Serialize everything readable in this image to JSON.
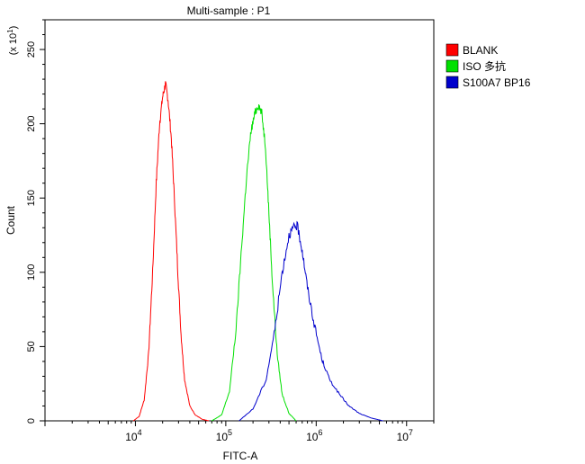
{
  "chart_data": {
    "type": "line",
    "title": "Multi-sample : P1",
    "xlabel": "FITC-A",
    "ylabel": "Count",
    "y_multiplier_label": "(x 10",
    "y_multiplier_exp": "1",
    "x_scale": "log",
    "xlim": [
      1000,
      20000000
    ],
    "ylim": [
      0,
      270
    ],
    "x_ticks": [
      {
        "value": 10000,
        "base": "10",
        "exp": "4"
      },
      {
        "value": 100000,
        "base": "10",
        "exp": "5"
      },
      {
        "value": 1000000,
        "base": "10",
        "exp": "6"
      },
      {
        "value": 10000000,
        "base": "10",
        "exp": "7"
      }
    ],
    "y_ticks": [
      0,
      50,
      100,
      150,
      200,
      250
    ],
    "legend_position": "right",
    "series": [
      {
        "name": "BLANK",
        "color": "#ff0000",
        "points": [
          [
            9500,
            0
          ],
          [
            11000,
            3
          ],
          [
            12500,
            14
          ],
          [
            14000,
            45
          ],
          [
            15500,
            100
          ],
          [
            17000,
            160
          ],
          [
            18500,
            200
          ],
          [
            20000,
            218
          ],
          [
            21500,
            227
          ],
          [
            23000,
            216
          ],
          [
            25000,
            190
          ],
          [
            27000,
            150
          ],
          [
            29500,
            100
          ],
          [
            32000,
            58
          ],
          [
            35000,
            28
          ],
          [
            40000,
            10
          ],
          [
            46000,
            4
          ],
          [
            55000,
            1
          ],
          [
            65000,
            0
          ]
        ]
      },
      {
        "name": "ISO 多抗",
        "color": "#00e000",
        "points": [
          [
            70000,
            0
          ],
          [
            90000,
            4
          ],
          [
            110000,
            20
          ],
          [
            130000,
            62
          ],
          [
            150000,
            118
          ],
          [
            170000,
            165
          ],
          [
            190000,
            195
          ],
          [
            210000,
            207
          ],
          [
            230000,
            213
          ],
          [
            250000,
            207
          ],
          [
            275000,
            185
          ],
          [
            300000,
            140
          ],
          [
            330000,
            90
          ],
          [
            370000,
            45
          ],
          [
            420000,
            18
          ],
          [
            500000,
            5
          ],
          [
            600000,
            0
          ]
        ]
      },
      {
        "name": "S100A7 BP16",
        "color": "#0000cc",
        "points": [
          [
            140000,
            0
          ],
          [
            200000,
            8
          ],
          [
            280000,
            28
          ],
          [
            350000,
            62
          ],
          [
            420000,
            100
          ],
          [
            500000,
            125
          ],
          [
            560000,
            130
          ],
          [
            620000,
            131
          ],
          [
            700000,
            115
          ],
          [
            800000,
            90
          ],
          [
            950000,
            65
          ],
          [
            1150000,
            42
          ],
          [
            1400000,
            28
          ],
          [
            1800000,
            18
          ],
          [
            2300000,
            10
          ],
          [
            3000000,
            5
          ],
          [
            4000000,
            2
          ],
          [
            5500000,
            0
          ]
        ]
      }
    ]
  }
}
